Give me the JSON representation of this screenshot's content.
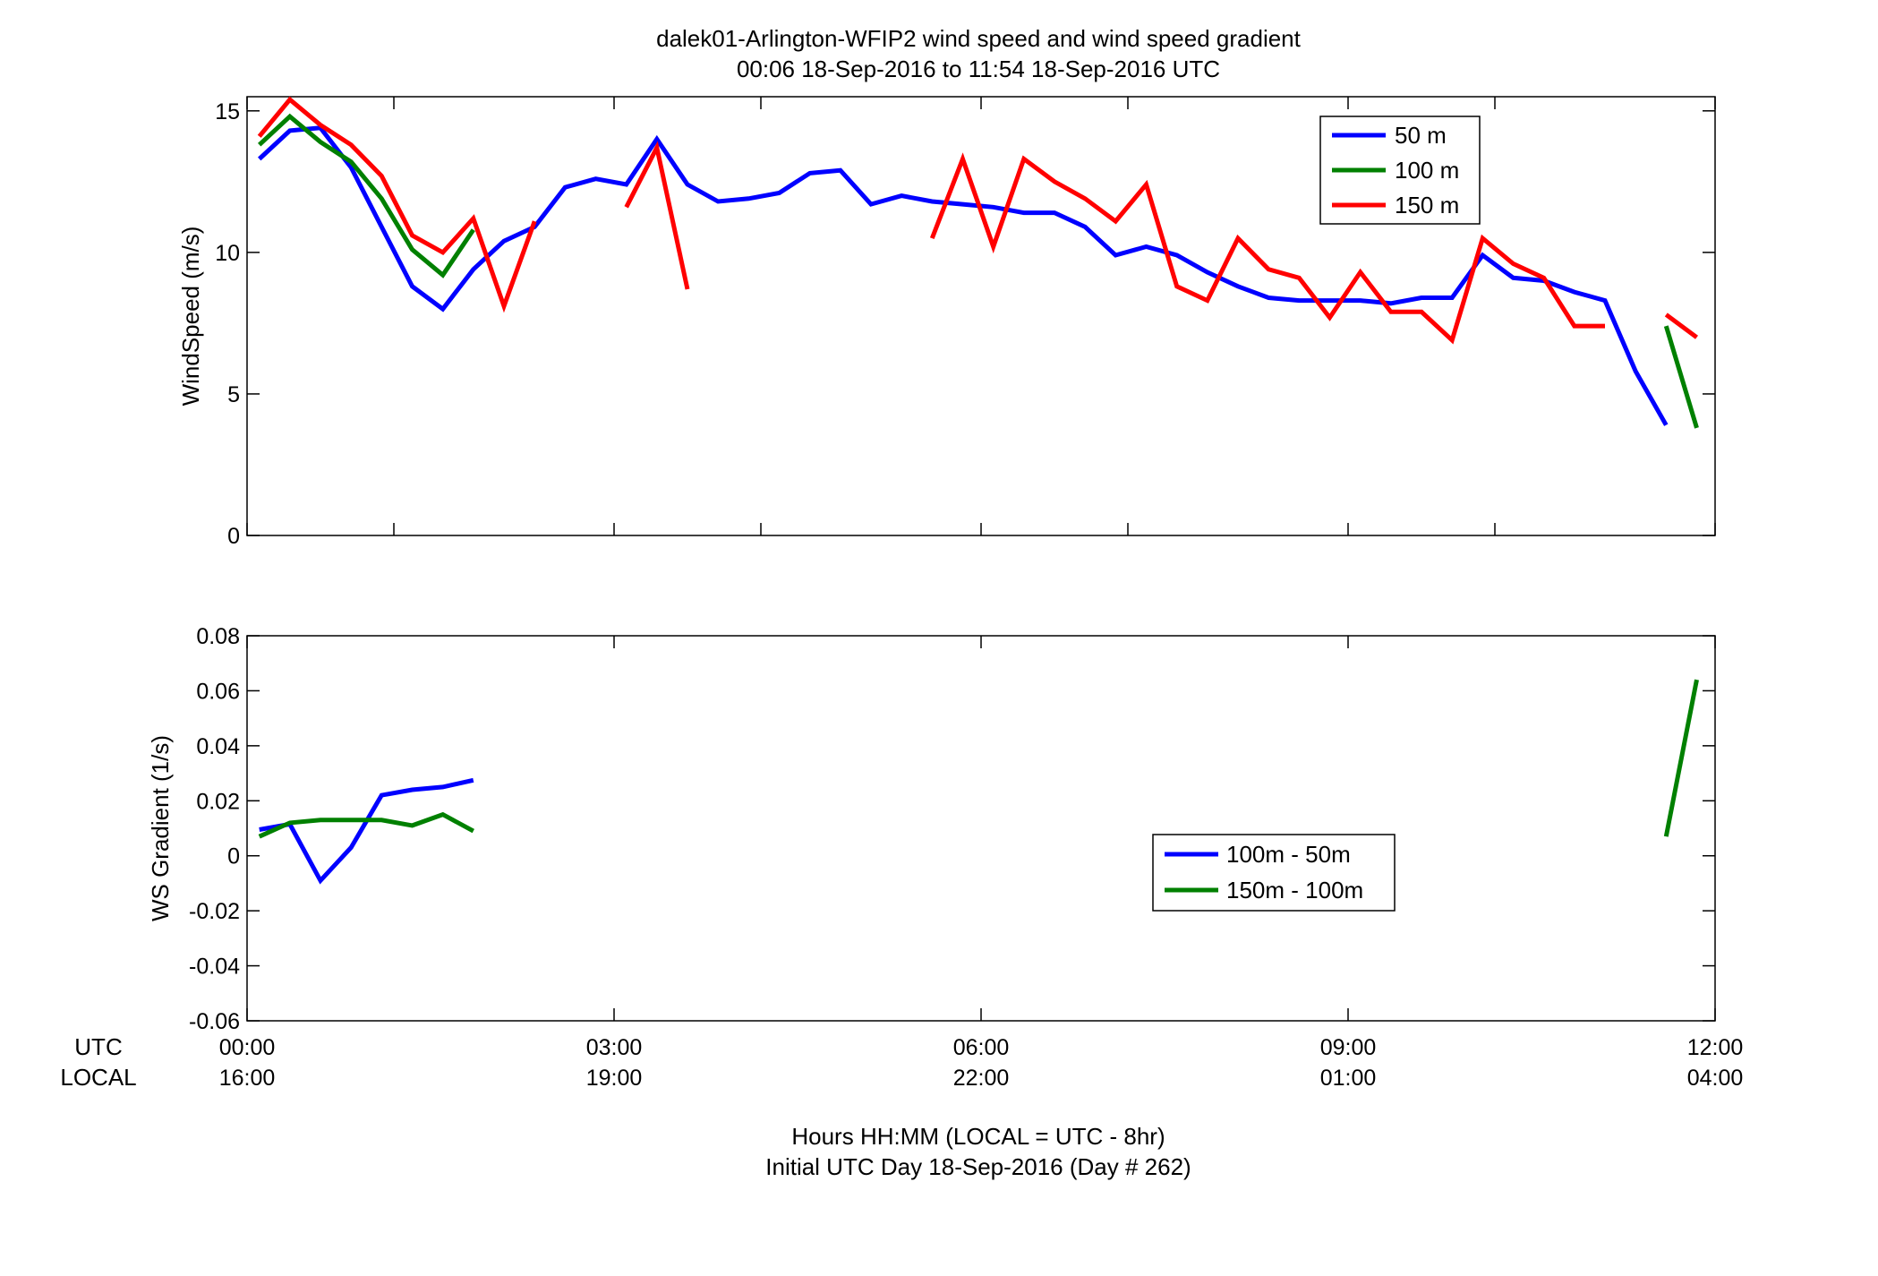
{
  "title_line1": "dalek01-Arlington-WFIP2  wind speed and wind speed gradient",
  "title_line2": "00:06 18-Sep-2016 to 11:54 18-Sep-2016  UTC",
  "xlabel_line1": "Hours HH:MM  (LOCAL = UTC - 8hr)",
  "xlabel_line2": "Initial UTC Day 18-Sep-2016 (Day # 262)",
  "row_label_utc": "UTC",
  "row_label_local": "LOCAL",
  "x_ticks_utc": [
    "00:00",
    "03:00",
    "06:00",
    "09:00",
    "12:00"
  ],
  "x_ticks_local": [
    "16:00",
    "19:00",
    "22:00",
    "01:00",
    "04:00"
  ],
  "chart_data": [
    {
      "type": "line",
      "ylabel": "WindSpeed (m/s)",
      "xlim": [
        0,
        12
      ],
      "ylim": [
        0,
        15.5
      ],
      "x_tick_values": [
        0,
        1.2,
        3,
        4.2,
        6,
        7.2,
        9,
        10.2,
        12
      ],
      "y_ticks": [
        "0",
        "5",
        "10",
        "15"
      ],
      "y_tick_values": [
        0,
        5,
        10,
        15
      ],
      "grid": false,
      "legend_position": "top-right",
      "series": [
        {
          "name": "50 m",
          "color": "#0000ff",
          "segments": [
            [
              [
                0.1,
                13.3
              ],
              [
                0.35,
                14.3
              ],
              [
                0.6,
                14.4
              ],
              [
                0.85,
                13.0
              ],
              [
                1.1,
                10.9
              ],
              [
                1.35,
                8.8
              ],
              [
                1.6,
                8.0
              ],
              [
                1.85,
                9.4
              ],
              [
                2.1,
                10.4
              ],
              [
                2.35,
                10.9
              ],
              [
                2.6,
                12.3
              ],
              [
                2.85,
                12.6
              ],
              [
                3.1,
                12.4
              ],
              [
                3.35,
                14.0
              ],
              [
                3.6,
                12.4
              ],
              [
                3.85,
                11.8
              ],
              [
                4.1,
                11.9
              ],
              [
                4.35,
                12.1
              ],
              [
                4.6,
                12.8
              ],
              [
                4.85,
                12.9
              ],
              [
                5.1,
                11.7
              ],
              [
                5.35,
                12.0
              ],
              [
                5.6,
                11.8
              ],
              [
                5.85,
                11.7
              ],
              [
                6.1,
                11.6
              ],
              [
                6.35,
                11.4
              ],
              [
                6.6,
                11.4
              ],
              [
                6.85,
                10.9
              ],
              [
                7.1,
                9.9
              ],
              [
                7.35,
                10.2
              ],
              [
                7.6,
                9.9
              ],
              [
                7.85,
                9.3
              ],
              [
                8.1,
                8.8
              ],
              [
                8.35,
                8.4
              ],
              [
                8.6,
                8.3
              ],
              [
                8.85,
                8.3
              ],
              [
                9.1,
                8.3
              ],
              [
                9.35,
                8.2
              ],
              [
                9.6,
                8.4
              ],
              [
                9.85,
                8.4
              ],
              [
                10.1,
                9.9
              ],
              [
                10.35,
                9.1
              ],
              [
                10.6,
                9.0
              ],
              [
                10.85,
                8.6
              ],
              [
                11.1,
                8.3
              ],
              [
                11.35,
                5.8
              ],
              [
                11.6,
                3.9
              ]
            ]
          ]
        },
        {
          "name": "100 m",
          "color": "#008000",
          "segments": [
            [
              [
                0.1,
                13.8
              ],
              [
                0.35,
                14.8
              ],
              [
                0.6,
                13.9
              ],
              [
                0.85,
                13.2
              ],
              [
                1.1,
                11.9
              ],
              [
                1.35,
                10.1
              ],
              [
                1.6,
                9.2
              ],
              [
                1.85,
                10.8
              ]
            ],
            [
              [
                11.6,
                7.4
              ],
              [
                11.85,
                3.8
              ]
            ]
          ]
        },
        {
          "name": "150 m",
          "color": "#ff0000",
          "segments": [
            [
              [
                0.1,
                14.1
              ],
              [
                0.35,
                15.4
              ],
              [
                0.6,
                14.5
              ],
              [
                0.85,
                13.8
              ],
              [
                1.1,
                12.7
              ],
              [
                1.35,
                10.6
              ],
              [
                1.6,
                10.0
              ],
              [
                1.85,
                11.2
              ],
              [
                2.1,
                8.1
              ],
              [
                2.35,
                11.1
              ]
            ],
            [
              [
                3.1,
                11.6
              ],
              [
                3.35,
                13.7
              ],
              [
                3.6,
                8.7
              ]
            ],
            [
              [
                5.6,
                10.5
              ],
              [
                5.85,
                13.3
              ],
              [
                6.1,
                10.2
              ],
              [
                6.35,
                13.3
              ],
              [
                6.6,
                12.5
              ],
              [
                6.85,
                11.9
              ],
              [
                7.1,
                11.1
              ],
              [
                7.35,
                12.4
              ],
              [
                7.6,
                8.8
              ],
              [
                7.85,
                8.3
              ],
              [
                8.1,
                10.5
              ],
              [
                8.35,
                9.4
              ],
              [
                8.6,
                9.1
              ],
              [
                8.85,
                7.7
              ],
              [
                9.1,
                9.3
              ],
              [
                9.35,
                7.9
              ],
              [
                9.6,
                7.9
              ],
              [
                9.85,
                6.9
              ],
              [
                10.1,
                10.5
              ],
              [
                10.35,
                9.6
              ],
              [
                10.6,
                9.1
              ],
              [
                10.85,
                7.4
              ],
              [
                11.1,
                7.4
              ]
            ],
            [
              [
                11.6,
                7.8
              ],
              [
                11.85,
                7.0
              ]
            ]
          ]
        }
      ]
    },
    {
      "type": "line",
      "ylabel": "WS Gradient (1/s)",
      "xlim": [
        0,
        12
      ],
      "ylim": [
        -0.06,
        0.08
      ],
      "x_tick_values": [
        0,
        3,
        6,
        9,
        12
      ],
      "y_ticks": [
        "0.08",
        "0.06",
        "0.04",
        "0.02",
        "0",
        "-0.02",
        "-0.04",
        "-0.06"
      ],
      "y_tick_values": [
        0.08,
        0.06,
        0.04,
        0.02,
        0,
        -0.02,
        -0.04,
        -0.06
      ],
      "grid": false,
      "legend_position": "center-right",
      "series": [
        {
          "name": "100m - 50m",
          "color": "#0000ff",
          "segments": [
            [
              [
                0.1,
                0.0095
              ],
              [
                0.35,
                0.0115
              ],
              [
                0.6,
                -0.009
              ],
              [
                0.85,
                0.003
              ],
              [
                1.1,
                0.022
              ],
              [
                1.35,
                0.024
              ],
              [
                1.6,
                0.025
              ],
              [
                1.85,
                0.0275
              ]
            ]
          ]
        },
        {
          "name": "150m - 100m",
          "color": "#008000",
          "segments": [
            [
              [
                0.1,
                0.007
              ],
              [
                0.35,
                0.012
              ],
              [
                0.6,
                0.013
              ],
              [
                0.85,
                0.013
              ],
              [
                1.1,
                0.013
              ],
              [
                1.35,
                0.011
              ],
              [
                1.6,
                0.015
              ],
              [
                1.85,
                0.009
              ]
            ],
            [
              [
                11.6,
                0.007
              ],
              [
                11.85,
                0.064
              ]
            ]
          ]
        }
      ]
    }
  ]
}
